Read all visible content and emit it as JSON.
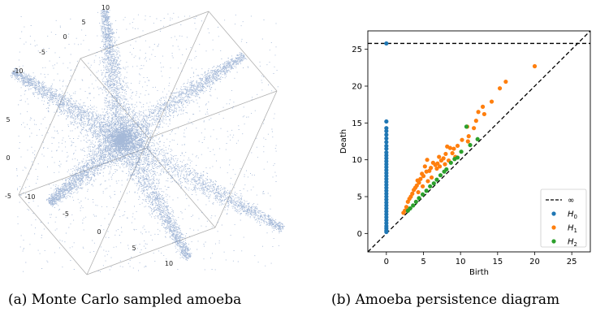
{
  "captions": {
    "a": "(a) Monte Carlo sampled amoeba",
    "b": "(b) Amoeba persistence diagram"
  },
  "chart_data": [
    {
      "type": "scatter",
      "subtype": "3d-point-cloud",
      "title": "",
      "point_color": "#5b7fb8",
      "x_ticks": [
        "-10",
        "-5",
        "0",
        "5",
        "10"
      ],
      "y_ticks": [
        "-10",
        "-5",
        "0",
        "5",
        "10"
      ],
      "z_ticks": [
        "-10",
        "-5",
        "0",
        "5",
        "10"
      ],
      "axis_range": [
        -10,
        10
      ],
      "arms": [
        [
          -10,
          10,
          10
        ],
        [
          10,
          10,
          10
        ],
        [
          -10,
          -10,
          10
        ],
        [
          10,
          -10,
          -10
        ],
        [
          0,
          0,
          -10
        ],
        [
          0,
          10,
          -10
        ]
      ]
    },
    {
      "type": "scatter",
      "title": "",
      "xlabel": "Birth",
      "ylabel": "Death",
      "xlim": [
        -2.5,
        27.5
      ],
      "ylim": [
        -2.5,
        27.5
      ],
      "xticks": [
        0,
        5,
        10,
        15,
        20,
        25
      ],
      "yticks": [
        0,
        5,
        10,
        15,
        20,
        25
      ],
      "infinity_level": 25.8,
      "legend_position": "lower-right",
      "legend": [
        {
          "key": "inf",
          "label": "∞",
          "style": "dashed-line",
          "color": "#000000"
        },
        {
          "key": "H0",
          "label": "H",
          "sub": "0",
          "color": "#1f77b4"
        },
        {
          "key": "H1",
          "label": "H",
          "sub": "1",
          "color": "#ff7f0e"
        },
        {
          "key": "H2",
          "label": "H",
          "sub": "2",
          "color": "#2ca02c"
        }
      ],
      "series": [
        {
          "name": "H0",
          "color": "#1f77b4",
          "points": [
            [
              0,
              25.8
            ],
            [
              0,
              15.2
            ],
            [
              0,
              14.3
            ],
            [
              0,
              13.9
            ],
            [
              0,
              13.4
            ],
            [
              0,
              12.9
            ],
            [
              0,
              12.4
            ],
            [
              0,
              11.9
            ],
            [
              0,
              11.5
            ],
            [
              0,
              11.0
            ],
            [
              0,
              10.6
            ],
            [
              0,
              10.2
            ],
            [
              0,
              9.8
            ],
            [
              0,
              9.4
            ],
            [
              0,
              9.0
            ],
            [
              0,
              8.6
            ],
            [
              0,
              8.2
            ],
            [
              0,
              7.8
            ],
            [
              0,
              7.4
            ],
            [
              0,
              7.0
            ],
            [
              0,
              6.6
            ],
            [
              0,
              6.2
            ],
            [
              0,
              5.8
            ],
            [
              0,
              5.4
            ],
            [
              0,
              5.0
            ],
            [
              0,
              4.6
            ],
            [
              0,
              4.2
            ],
            [
              0,
              3.8
            ],
            [
              0,
              3.4
            ],
            [
              0,
              3.0
            ],
            [
              0,
              2.6
            ],
            [
              0,
              2.2
            ],
            [
              0,
              1.8
            ],
            [
              0,
              1.4
            ],
            [
              0,
              1.0
            ],
            [
              0,
              0.7
            ],
            [
              0,
              0.4
            ],
            [
              0,
              0.2
            ]
          ]
        },
        {
          "name": "H1",
          "color": "#ff7f0e",
          "points": [
            [
              20.0,
              22.7
            ],
            [
              16.1,
              20.6
            ],
            [
              15.3,
              19.7
            ],
            [
              14.2,
              17.9
            ],
            [
              13.2,
              16.2
            ],
            [
              13.0,
              17.2
            ],
            [
              12.4,
              16.5
            ],
            [
              12.1,
              15.3
            ],
            [
              11.8,
              14.3
            ],
            [
              10.9,
              14.5
            ],
            [
              11.1,
              13.2
            ],
            [
              11.0,
              12.5
            ],
            [
              10.2,
              12.7
            ],
            [
              9.6,
              11.9
            ],
            [
              9.1,
              11.5
            ],
            [
              8.6,
              11.6
            ],
            [
              8.9,
              10.9
            ],
            [
              8.2,
              11.8
            ],
            [
              8.0,
              10.8
            ],
            [
              7.7,
              10.2
            ],
            [
              7.4,
              9.9
            ],
            [
              7.1,
              10.4
            ],
            [
              6.9,
              9.5
            ],
            [
              6.6,
              9.3
            ],
            [
              6.3,
              9.6
            ],
            [
              6.0,
              8.9
            ],
            [
              5.8,
              8.5
            ],
            [
              5.5,
              10.0
            ],
            [
              5.4,
              8.4
            ],
            [
              5.2,
              9.1
            ],
            [
              5.0,
              7.8
            ],
            [
              4.8,
              8.1
            ],
            [
              4.6,
              7.4
            ],
            [
              4.4,
              6.9
            ],
            [
              4.2,
              7.2
            ],
            [
              4.1,
              6.5
            ],
            [
              3.9,
              6.2
            ],
            [
              3.7,
              5.9
            ],
            [
              3.5,
              5.4
            ],
            [
              3.3,
              5.0
            ],
            [
              3.1,
              4.7
            ],
            [
              2.9,
              4.3
            ],
            [
              2.7,
              3.6
            ],
            [
              2.5,
              3.1
            ],
            [
              2.3,
              2.8
            ],
            [
              6.8,
              8.8
            ],
            [
              7.2,
              9.1
            ],
            [
              7.9,
              9.4
            ],
            [
              8.4,
              9.9
            ],
            [
              9.3,
              10.4
            ],
            [
              6.1,
              7.6
            ],
            [
              5.6,
              7.1
            ],
            [
              4.9,
              6.4
            ],
            [
              4.3,
              5.6
            ]
          ]
        },
        {
          "name": "H2",
          "color": "#2ca02c",
          "points": [
            [
              10.8,
              14.5
            ],
            [
              11.3,
              12.0
            ],
            [
              10.1,
              11.1
            ],
            [
              9.6,
              10.3
            ],
            [
              9.2,
              10.1
            ],
            [
              8.7,
              9.6
            ],
            [
              8.1,
              8.7
            ],
            [
              7.8,
              8.4
            ],
            [
              7.3,
              7.9
            ],
            [
              6.8,
              7.3
            ],
            [
              6.4,
              6.8
            ],
            [
              5.9,
              6.4
            ],
            [
              5.4,
              5.8
            ],
            [
              4.9,
              5.3
            ],
            [
              4.4,
              4.8
            ],
            [
              4.0,
              4.3
            ],
            [
              3.6,
              3.8
            ],
            [
              3.2,
              3.4
            ],
            [
              2.9,
              3.1
            ],
            [
              12.3,
              12.8
            ]
          ]
        }
      ]
    }
  ]
}
